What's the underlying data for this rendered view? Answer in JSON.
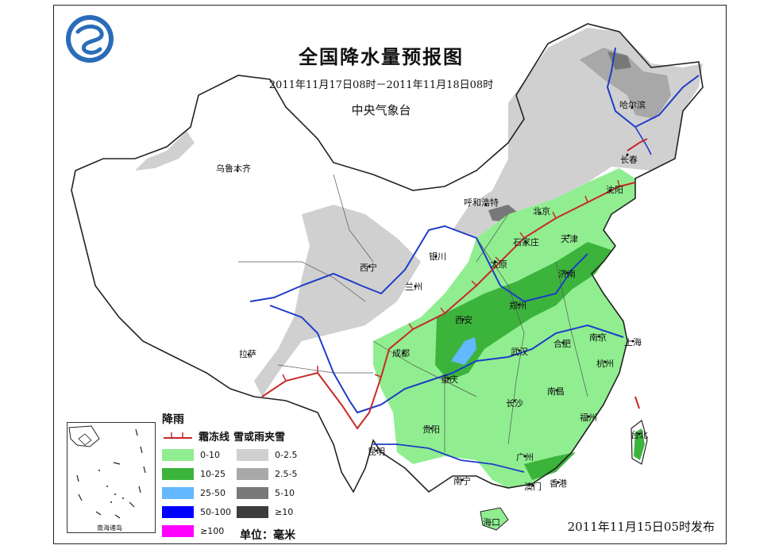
{
  "header": {
    "title": "全国降水量预报图",
    "period": "2011年11月17日08时－2011年11月18日08时",
    "agency": "中央气象台"
  },
  "footer": {
    "issued": "2011年11月15日05时发布"
  },
  "cities": [
    {
      "name": "乌鲁木齐"
    },
    {
      "name": "哈尔滨"
    },
    {
      "name": "长春"
    },
    {
      "name": "沈阳"
    },
    {
      "name": "呼和浩特"
    },
    {
      "name": "北京"
    },
    {
      "name": "天津"
    },
    {
      "name": "石家庄"
    },
    {
      "name": "太原"
    },
    {
      "name": "济南"
    },
    {
      "name": "银川"
    },
    {
      "name": "西宁"
    },
    {
      "name": "兰州"
    },
    {
      "name": "郑州"
    },
    {
      "name": "西安"
    },
    {
      "name": "南京"
    },
    {
      "name": "合肥"
    },
    {
      "name": "上海"
    },
    {
      "name": "武汉"
    },
    {
      "name": "杭州"
    },
    {
      "name": "成都"
    },
    {
      "name": "重庆"
    },
    {
      "name": "拉萨"
    },
    {
      "name": "南昌"
    },
    {
      "name": "长沙"
    },
    {
      "name": "福州"
    },
    {
      "name": "台北"
    },
    {
      "name": "贵阳"
    },
    {
      "name": "昆明"
    },
    {
      "name": "广州"
    },
    {
      "name": "南宁"
    },
    {
      "name": "澳门"
    },
    {
      "name": "香港"
    },
    {
      "name": "海口"
    }
  ],
  "legend": {
    "rain_heading": "降雨",
    "freezing_line_label": "霜冻线",
    "snow_heading": "雪或雨夹雪",
    "rain_items": [
      {
        "label": "0-10",
        "color": "#90ee90"
      },
      {
        "label": "10-25",
        "color": "#3cb43c"
      },
      {
        "label": "25-50",
        "color": "#63b8ff"
      },
      {
        "label": "50-100",
        "color": "#0000ff"
      },
      {
        "label": "≥100",
        "color": "#ff00ff"
      }
    ],
    "snow_items": [
      {
        "label": "0-2.5",
        "color": "#d0d0d0"
      },
      {
        "label": "2.5-5",
        "color": "#a8a8a8"
      },
      {
        "label": "5-10",
        "color": "#787878"
      },
      {
        "label": "≥10",
        "color": "#3c3c3c"
      }
    ],
    "unit": "单位：毫米"
  },
  "inset": {
    "label": "南海诸岛"
  },
  "colors": {
    "freezing_line": "#c82828",
    "river": "#1e3cc8",
    "border": "#222222"
  }
}
